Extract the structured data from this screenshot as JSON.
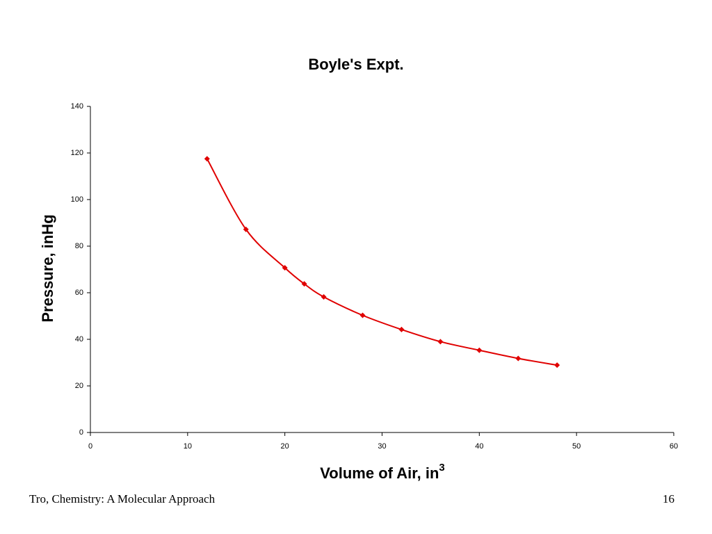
{
  "chart_data": {
    "type": "line",
    "title": "Boyle's Expt.",
    "xlabel": {
      "text": "Volume of Air, in",
      "superscript": "3"
    },
    "ylabel": "Pressure, inHg",
    "x": [
      12,
      16,
      20,
      22,
      24,
      28,
      32,
      36,
      40,
      44,
      48
    ],
    "series": [
      {
        "color": "#e00000",
        "values": [
          117.5,
          87.2,
          70.7,
          63.8,
          58.2,
          50.3,
          44.2,
          39.0,
          35.3,
          31.8,
          28.9
        ]
      }
    ],
    "xlim": [
      0,
      60
    ],
    "xticks": [
      0,
      10,
      20,
      30,
      40,
      50,
      60
    ],
    "ylim": [
      0,
      140
    ],
    "yticks": [
      0,
      20,
      40,
      60,
      80,
      100,
      120,
      140
    ],
    "grid": false,
    "smooth": true
  },
  "footer": {
    "source": "Tro, Chemistry: A Molecular Approach",
    "page": "16"
  }
}
